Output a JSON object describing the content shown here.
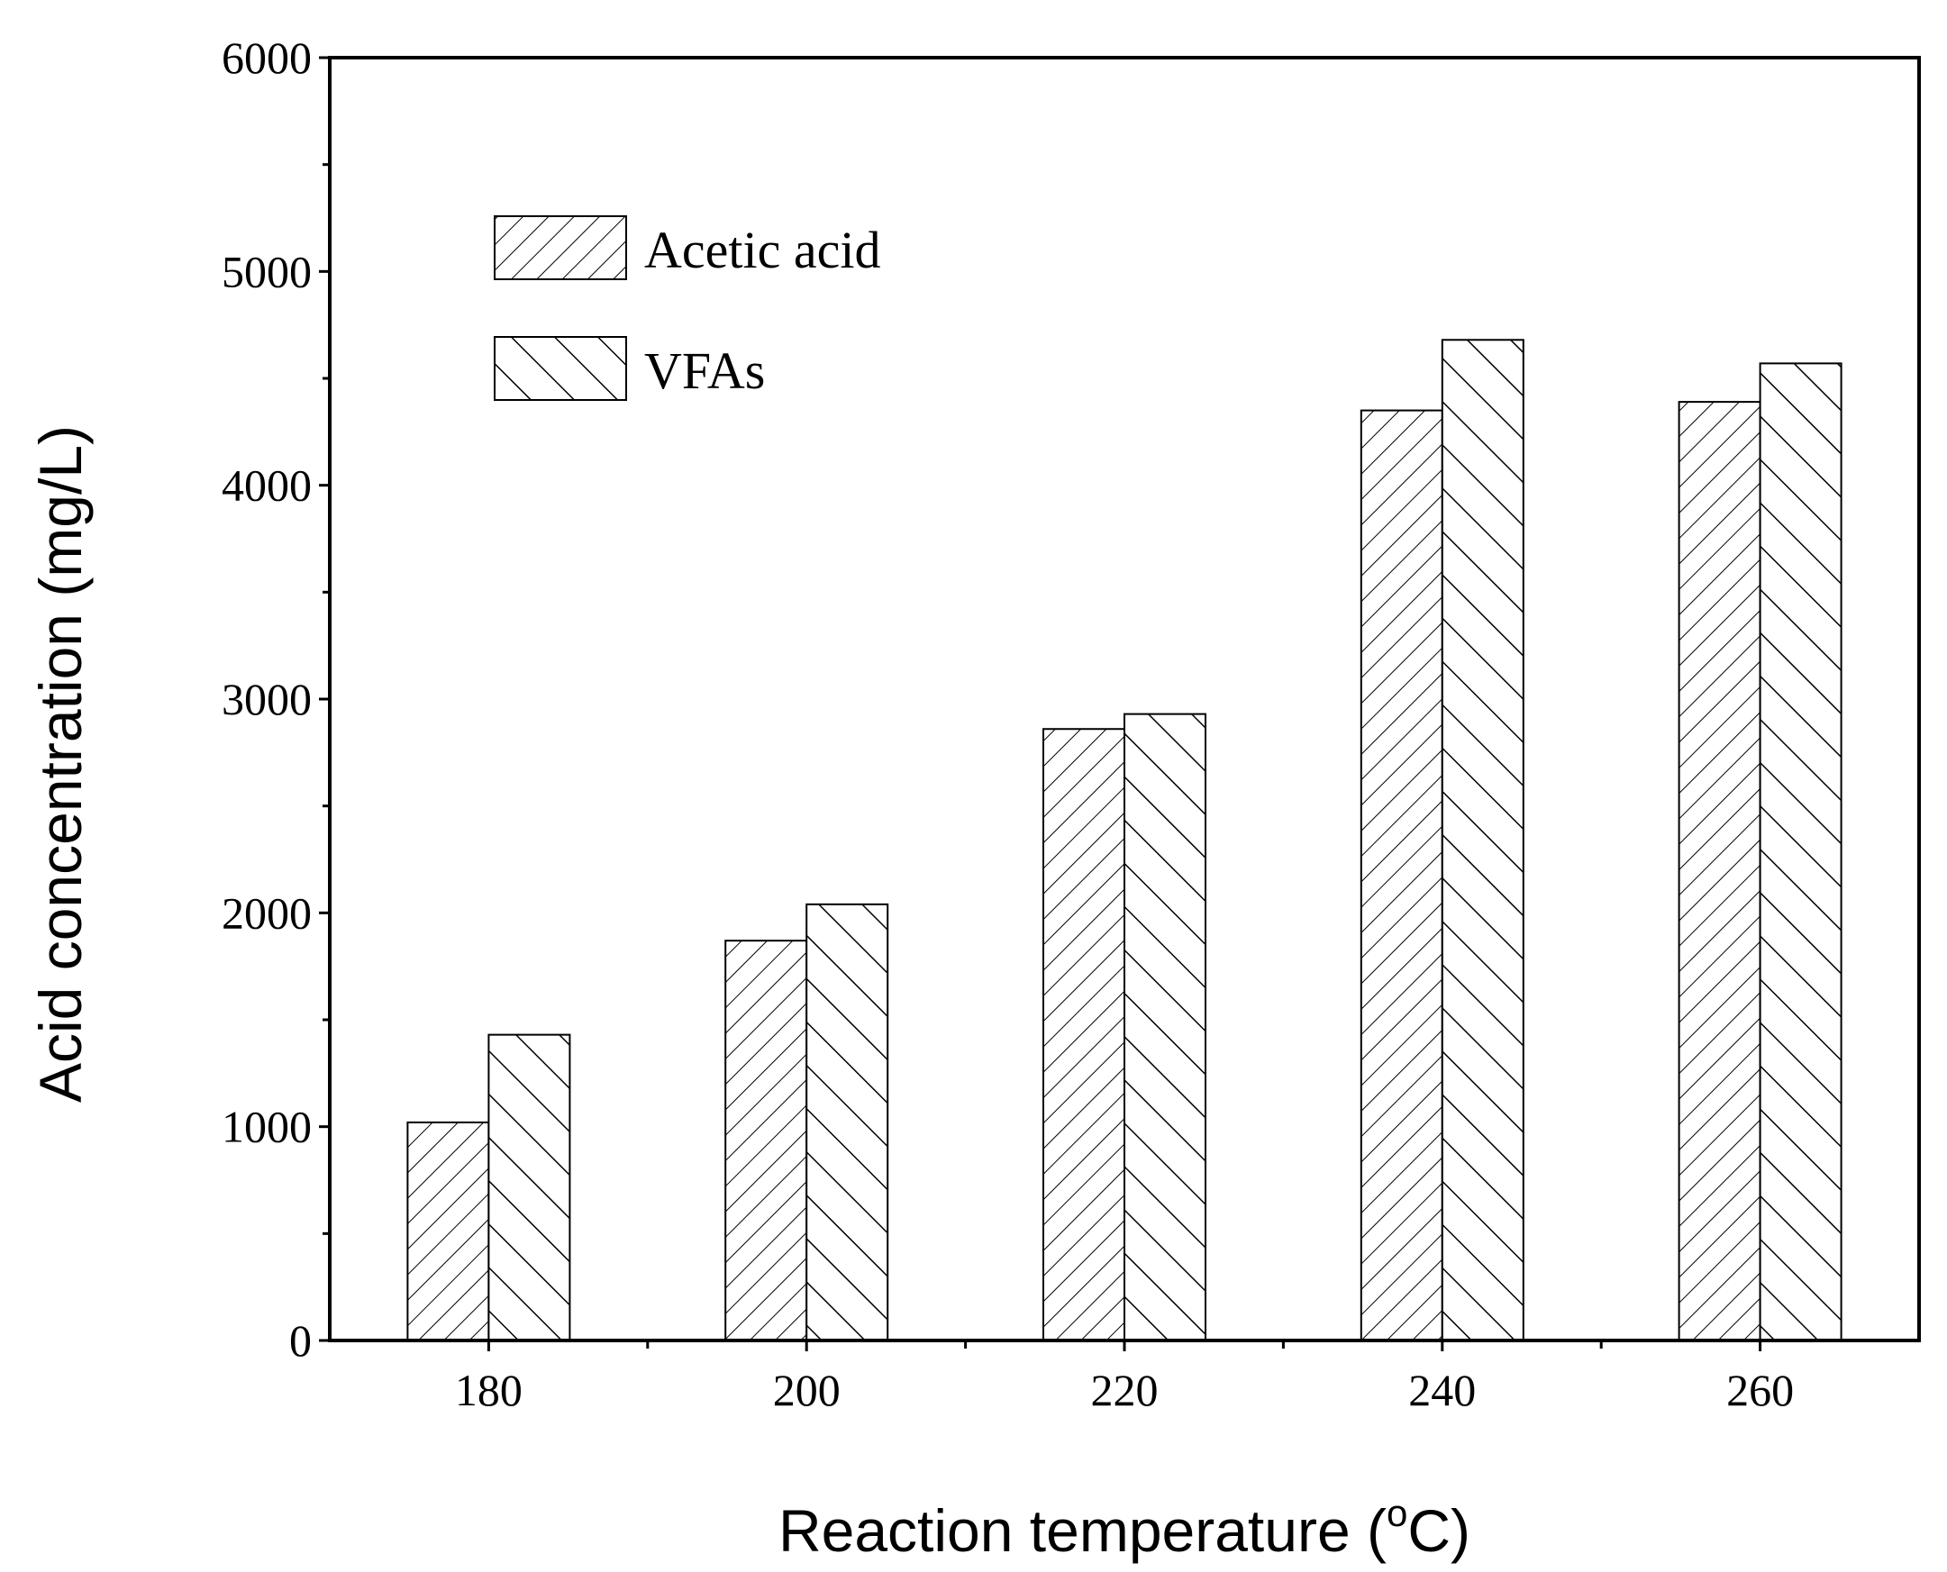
{
  "chart_data": {
    "type": "bar",
    "categories": [
      "180",
      "200",
      "220",
      "240",
      "260"
    ],
    "series": [
      {
        "name": "Acetic acid",
        "pattern": "hatch-forward",
        "values": [
          1020,
          1870,
          2860,
          4350,
          4390
        ]
      },
      {
        "name": "VFAs",
        "pattern": "hatch-backward",
        "values": [
          1430,
          2040,
          2930,
          4680,
          4570
        ]
      }
    ],
    "xlabel": "Reaction temperature",
    "xlabel_unit_prefix": "(",
    "xlabel_unit_superscript": "o",
    "xlabel_unit_suffix": "C)",
    "ylabel": "Acid concentration (mg/L)",
    "ylim": [
      0,
      6000
    ],
    "yticks": [
      0,
      1000,
      2000,
      3000,
      4000,
      5000,
      6000
    ],
    "yminor_step": 500,
    "grid": false,
    "legend_position": "top-left",
    "colors": {
      "bar_fill": "#ffffff",
      "stroke": "#000000"
    }
  }
}
